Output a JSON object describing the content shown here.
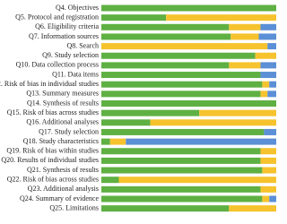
{
  "chart_data": {
    "type": "stacked-bar-horizontal",
    "categories": [
      "Q4. Objectives",
      "Q5. Protocol and registration",
      "Q6. Eligibility criteria",
      "Q7. Information sources",
      "Q8. Search",
      "Q9. Study selection",
      "Q10. Data collection process",
      "Q11. Data items",
      "Q12. Risk of bias in individual studies",
      "Q13. Summary measures",
      "Q14. Synthesis of results",
      "Q15. Risk of bias across studies",
      "Q16. Additional analyses",
      "Q17. Study selection",
      "Q18. Study characteristics",
      "Q19. Risk of bias within studies",
      "Q20. Results of individual studies",
      "Q21. Synthesis of results",
      "Q22. Risk of bias across studies",
      "Q23. Additional analysis",
      "Q24. Summary of evidence",
      "Q25. Limitations"
    ],
    "series": [
      {
        "color": "#5fb043",
        "values": [
          100,
          37,
          73,
          74,
          0,
          88,
          73,
          91,
          92,
          91,
          100,
          56,
          28,
          93,
          5,
          91,
          91,
          92,
          10,
          91,
          92,
          73
        ]
      },
      {
        "color": "#f6c32e",
        "values": [
          0,
          63,
          18,
          16,
          95,
          12,
          18,
          0,
          4,
          4,
          0,
          44,
          72,
          0,
          9,
          9,
          9,
          8,
          90,
          9,
          4,
          27
        ]
      },
      {
        "color": "#5b8fd6",
        "values": [
          0,
          0,
          9,
          10,
          5,
          0,
          9,
          9,
          4,
          5,
          0,
          0,
          0,
          7,
          86,
          0,
          0,
          0,
          0,
          0,
          4,
          0
        ]
      }
    ]
  }
}
